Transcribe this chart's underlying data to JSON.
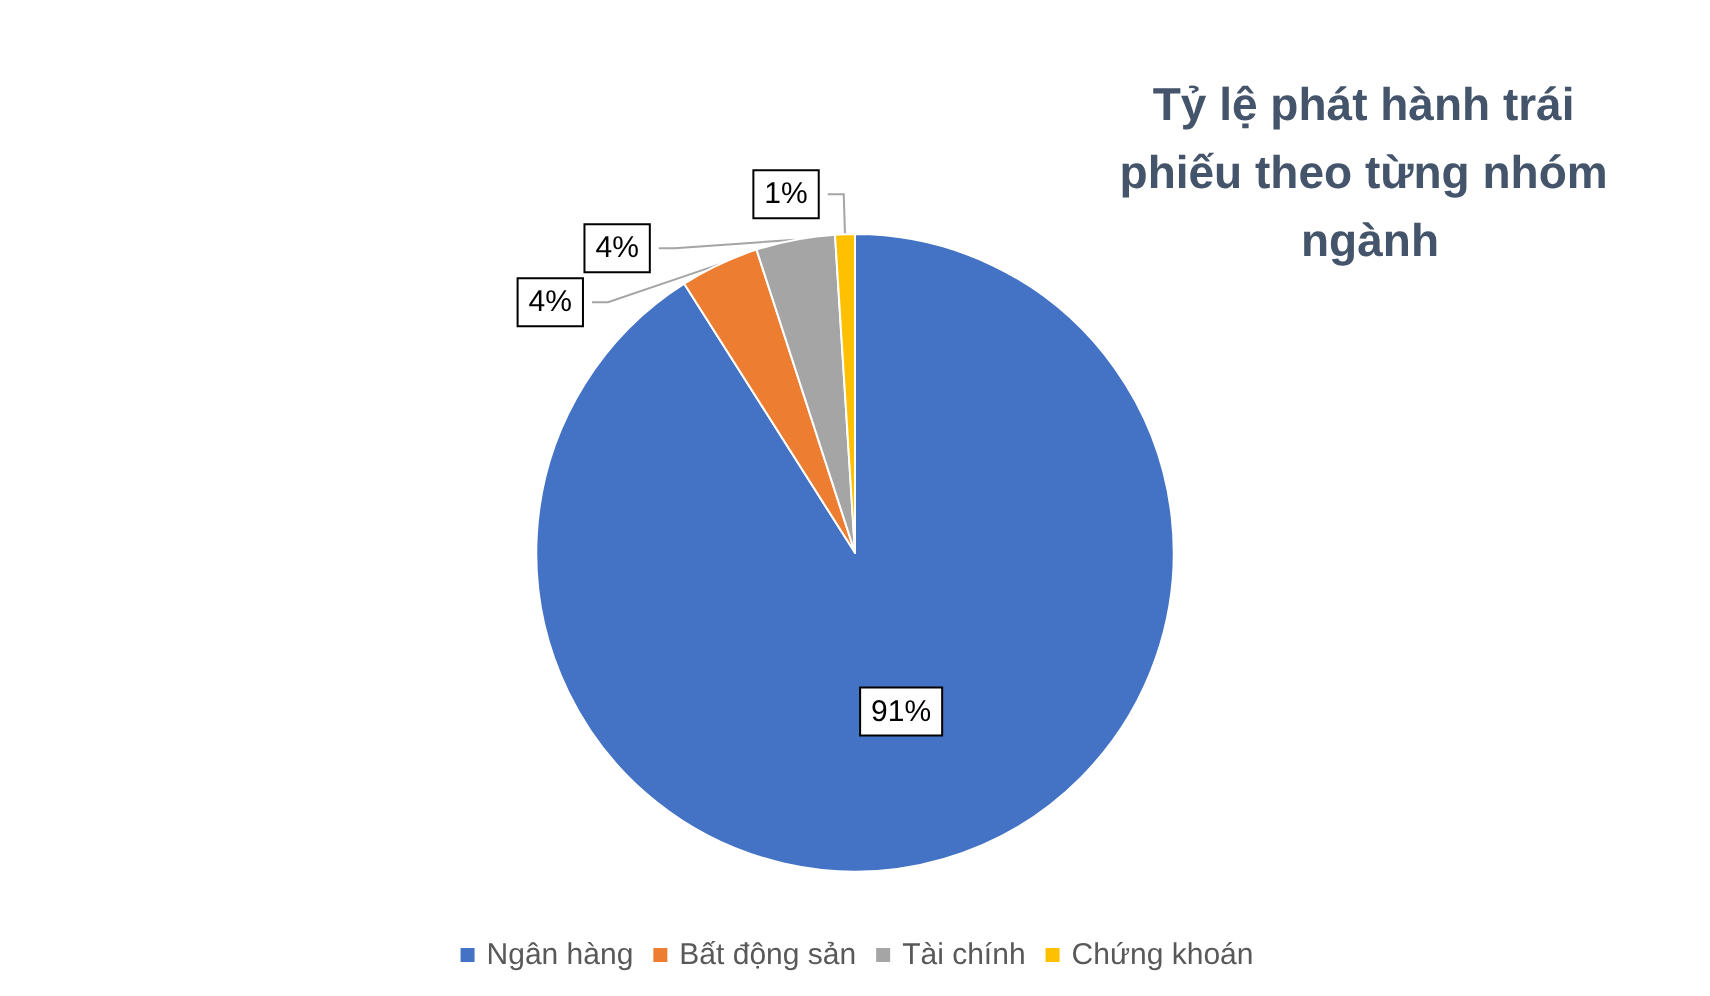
{
  "chart_data": {
    "type": "pie",
    "title": "Tỷ lệ phát hành trái phiếu theo từng nhóm ngành",
    "categories": [
      "Ngân hàng",
      "Bất động sản",
      "Tài chính",
      "Chứng khoán"
    ],
    "values": [
      91,
      4,
      4,
      1
    ],
    "colors": [
      "#4472c4",
      "#ed7d31",
      "#a5a5a5",
      "#ffc000"
    ],
    "value_labels": [
      "91%",
      "4%",
      "4%",
      "1%"
    ],
    "legend": "bottom"
  }
}
